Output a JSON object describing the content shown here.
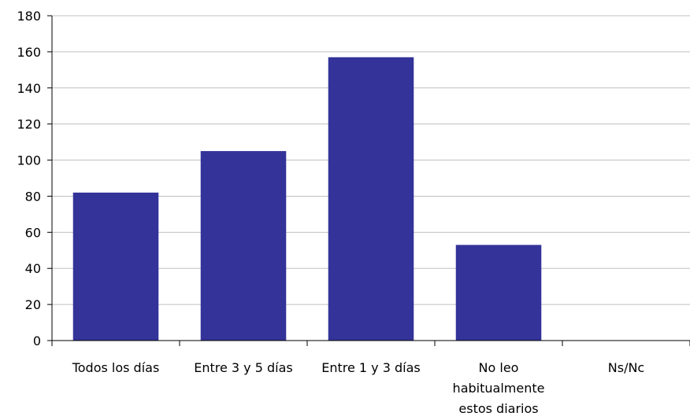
{
  "chart_data": {
    "type": "bar",
    "title": "",
    "xlabel": "",
    "ylabel": "",
    "categories": [
      [
        "Todos los días"
      ],
      [
        "Entre 3 y 5 días"
      ],
      [
        "Entre 1 y 3 días"
      ],
      [
        "No leo",
        "habitualmente",
        "estos diarios"
      ],
      [
        "Ns/Nc"
      ]
    ],
    "values": [
      82,
      105,
      157,
      53,
      0
    ],
    "ylim": [
      0,
      180
    ],
    "yticks": [
      0,
      20,
      40,
      60,
      80,
      100,
      120,
      140,
      160,
      180
    ],
    "grid": true,
    "legend": "none",
    "colors": {
      "bar": "#333399",
      "grid": "#c0c0c0",
      "axis": "#000000"
    }
  }
}
